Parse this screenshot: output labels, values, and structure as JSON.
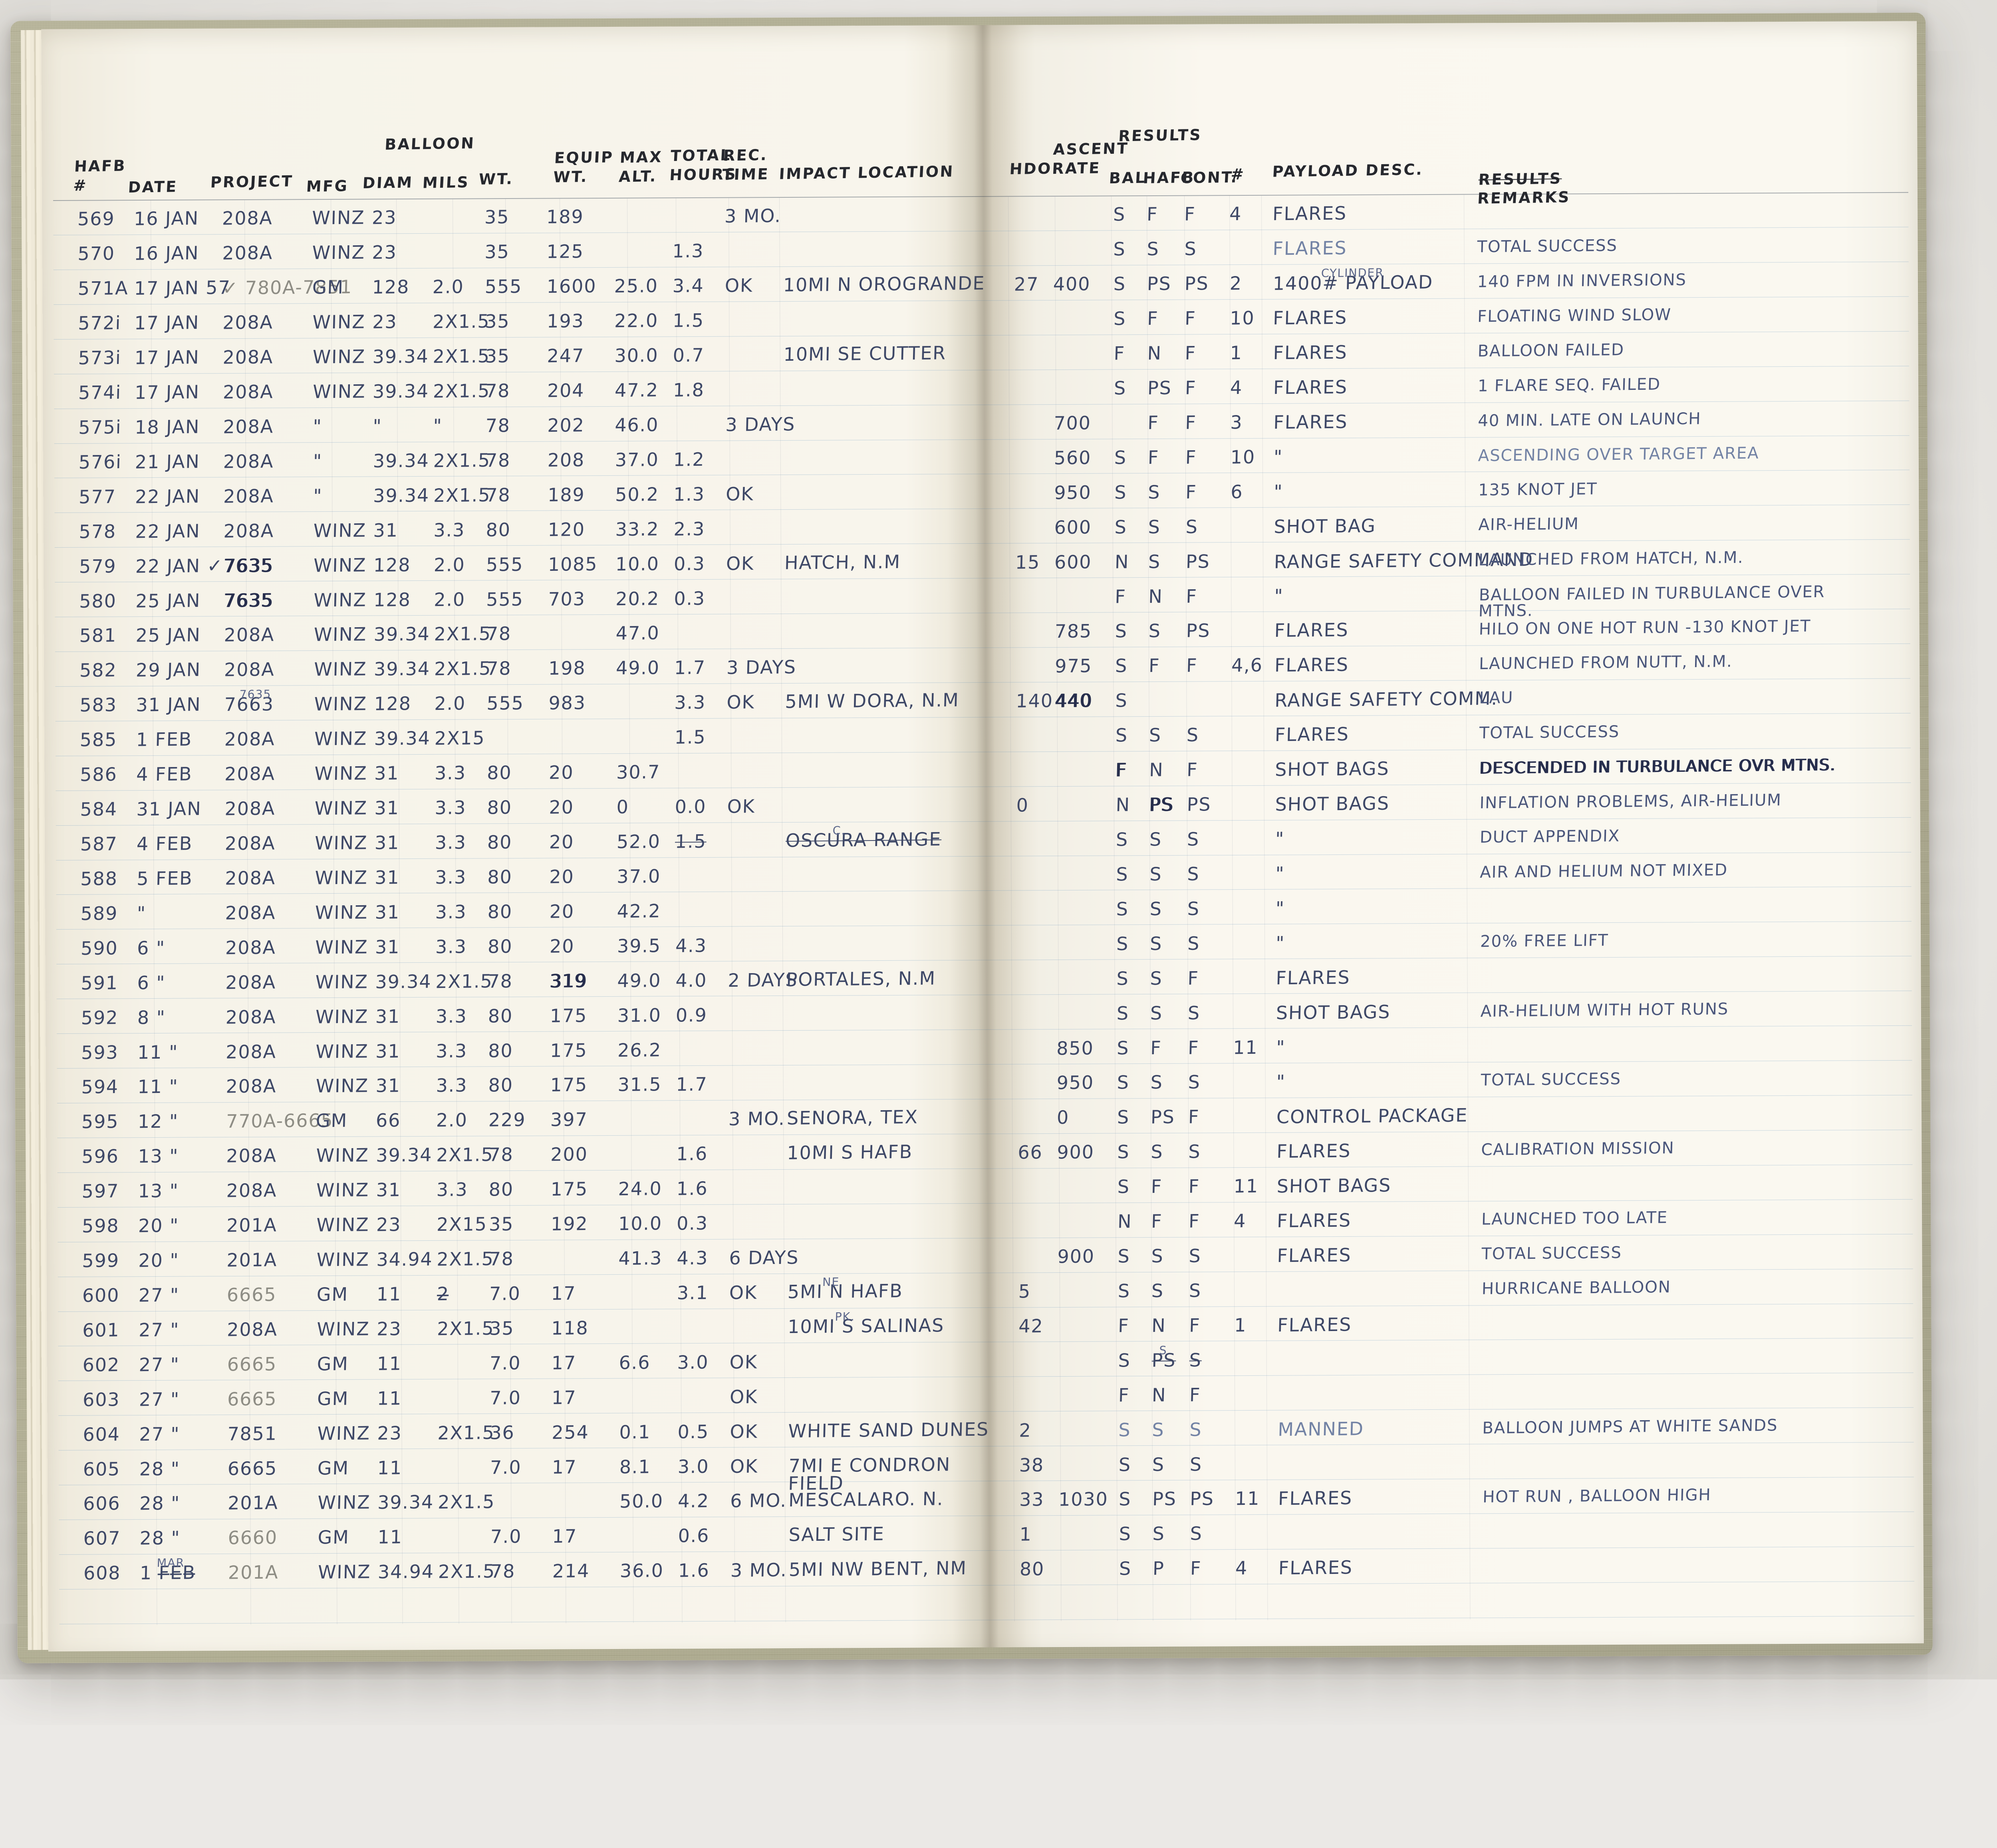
{
  "document": {
    "type": "handwritten balloon launch logbook, two-page spread",
    "palette": {
      "paper": "#f8f5ec",
      "cover_cloth": "#b2af92",
      "rule_blue": "#9db9d0",
      "ink": "#3e4867",
      "ink_dark": "#272e4d",
      "pencil": "#8e8d85",
      "backdrop": "#ebe9e6"
    }
  },
  "headers": {
    "hafb": "HAFB\n#",
    "date": "DATE",
    "project": "PROJECT",
    "balloon_group": "BALLOON",
    "mfg": "MFG",
    "diam": "DIAM",
    "mils": "MILS",
    "wt": "WT.",
    "equip": "EQUIP\nWT.",
    "max_alt": "MAX\nALT.",
    "total_hours": "TOTAL\nHOURS",
    "rec_time": "REC.\nTIME",
    "impact": "IMPACT LOCATION",
    "hdo": "HDO",
    "ascent": "ASCENT\nRATE",
    "results_group": "RESULTS",
    "bal": "BAL",
    "hafb_cont": "HAFB",
    "cont": "CONT.",
    "num": "#",
    "payload": "PAYLOAD DESC.",
    "remarks_struck": "RESULTS",
    "remarks": "REMARKS"
  },
  "rows": [
    {
      "no": "569",
      "date": "16 JAN",
      "proj": "208A",
      "mfg": "WINZ",
      "diam": "23",
      "wt": "35",
      "eq": "189",
      "rec": "3 MO.",
      "bal": "S",
      "hf": "F",
      "ct": "F",
      "n": "4",
      "pay": "FLARES"
    },
    {
      "no": "570",
      "date": "16 JAN",
      "proj": "208A",
      "mfg": "WINZ",
      "diam": "23",
      "wt": "35",
      "eq": "125",
      "hr": "1.3",
      "bal": "S",
      "hf": "S",
      "ct": "S",
      "pay": {
        "t": "FLARES",
        "faint": true
      },
      "rem": "TOTAL SUCCESS"
    },
    {
      "no": "571A",
      "date": "17 JAN 57",
      "proj": {
        "t": "✓ 780A-7851",
        "pencil": true
      },
      "mfg": "GM",
      "diam": "128",
      "mils": "2.0",
      "wt": "555",
      "eq": "1600",
      "alt": "25.0",
      "hr": "3.4",
      "rec": "OK",
      "imp": "10MI N OROGRANDE",
      "hdo": "27",
      "asc": "400",
      "bal": "S",
      "hf": "PS",
      "ct": "PS",
      "n": "2",
      "pay": {
        "t": "1400# PAYLOAD",
        "note": "CYLINDER"
      },
      "rem": "140 FPM IN INVERSIONS"
    },
    {
      "no": "572i",
      "date": "17 JAN",
      "proj": "208A",
      "mfg": "WINZ",
      "diam": "23",
      "mils": "2X1.5",
      "wt": "35",
      "eq": "193",
      "alt": "22.0",
      "hr": "1.5",
      "bal": "S",
      "hf": "F",
      "ct": "F",
      "n": "10",
      "pay": "FLARES",
      "rem": "FLOATING WIND SLOW"
    },
    {
      "no": "573i",
      "date": "17 JAN",
      "proj": "208A",
      "mfg": "WINZ",
      "diam": "39.34",
      "mils": "2X1.5",
      "wt": "35",
      "eq": "247",
      "alt": "30.0",
      "hr": "0.7",
      "imp": "10MI SE CUTTER",
      "bal": "F",
      "hf": "N",
      "ct": "F",
      "n": "1",
      "pay": "FLARES",
      "rem": "BALLOON FAILED"
    },
    {
      "no": "574i",
      "date": "17 JAN",
      "proj": "208A",
      "mfg": "WINZ",
      "diam": "39.34",
      "mils": "2X1.5",
      "wt": "78",
      "eq": "204",
      "alt": "47.2",
      "hr": "1.8",
      "bal": "S",
      "hf": "PS",
      "ct": "F",
      "n": "4",
      "pay": "FLARES",
      "rem": "1 FLARE SEQ. FAILED"
    },
    {
      "no": "575i",
      "date": "18 JAN",
      "proj": "208A",
      "mfg": "\"",
      "diam": "\"",
      "mils": "\"",
      "wt": "78",
      "eq": "202",
      "alt": "46.0",
      "rec": "3 DAYS",
      "asc": "700",
      "hf": "F",
      "ct": "F",
      "n": "3",
      "pay": "FLARES",
      "rem": "40 MIN. LATE ON LAUNCH"
    },
    {
      "no": "576i",
      "date": "21 JAN",
      "proj": "208A",
      "mfg": "\"",
      "diam": "39.34",
      "mils": "2X1.5",
      "wt": "78",
      "eq": "208",
      "alt": "37.0",
      "hr": "1.2",
      "asc": "560",
      "bal": "S",
      "hf": "F",
      "ct": "F",
      "n": "10",
      "pay": "\"",
      "rem": {
        "t": "ASCENDING OVER TARGET AREA",
        "faint": true
      }
    },
    {
      "no": "577",
      "date": "22 JAN",
      "proj": "208A",
      "mfg": "\"",
      "diam": "39.34",
      "mils": "2X1.5",
      "wt": "78",
      "eq": "189",
      "alt": "50.2",
      "hr": "1.3",
      "rec": "OK",
      "asc": "950",
      "bal": "S",
      "hf": "S",
      "ct": "F",
      "n": "6",
      "pay": "\"",
      "rem": "135 KNOT JET"
    },
    {
      "no": "578",
      "date": "22 JAN",
      "proj": "208A",
      "mfg": "WINZ",
      "diam": "31",
      "mils": "3.3",
      "wt": "80",
      "eq": "120",
      "alt": "33.2",
      "hr": "2.3",
      "asc": "600",
      "bal": "S",
      "hf": "S",
      "ct": "S",
      "pay": "SHOT BAG",
      "rem": "AIR-HELIUM"
    },
    {
      "no": "579",
      "date": "22 JAN ✓",
      "proj": {
        "t": "7635",
        "bold": true
      },
      "mfg": "WINZ",
      "diam": "128",
      "mils": "2.0",
      "wt": "555",
      "eq": "1085",
      "alt": "10.0",
      "hr": "0.3",
      "rec": "OK",
      "imp": "HATCH, N.M",
      "hdo": "15",
      "asc": "600",
      "bal": "N",
      "hf": "S",
      "ct": "PS",
      "pay": "RANGE SAFETY COMMAND",
      "rem": "LAUNCHED FROM HATCH, N.M."
    },
    {
      "no": "580",
      "date": "25 JAN",
      "proj": {
        "t": "7635",
        "bold": true
      },
      "mfg": "WINZ",
      "diam": "128",
      "mils": "2.0",
      "wt": "555",
      "eq": "703",
      "alt": "20.2",
      "hr": "0.3",
      "bal": "F",
      "hf": "N",
      "ct": "F",
      "pay": "\"",
      "rem": "BALLOON FAILED IN TURBULANCE OVER MTNS."
    },
    {
      "no": "581",
      "date": "25 JAN",
      "proj": "208A",
      "mfg": "WINZ",
      "diam": "39.34",
      "mils": "2X1.5",
      "wt": "78",
      "alt": "47.0",
      "asc": "785",
      "bal": "S",
      "hf": "S",
      "ct": "PS",
      "pay": "FLARES",
      "rem": "HILO ON ONE HOT RUN -130 KNOT JET"
    },
    {
      "no": "582",
      "date": "29 JAN",
      "proj": "208A",
      "mfg": "WINZ",
      "diam": "39.34",
      "mils": "2X1.5",
      "wt": "78",
      "eq": "198",
      "alt": "49.0",
      "hr": "1.7",
      "rec": "3 DAYS",
      "asc": "975",
      "bal": "S",
      "hf": "F",
      "ct": "F",
      "n": "4,6",
      "pay": "FLARES",
      "rem": "LAUNCHED FROM NUTT, N.M."
    },
    {
      "no": "583",
      "date": "31 JAN",
      "proj": {
        "t": "7663",
        "note": "7635"
      },
      "mfg": "WINZ",
      "diam": "128",
      "mils": "2.0",
      "wt": "555",
      "eq": "983",
      "hr": "3.3",
      "rec": "OK",
      "imp": "5MI W DORA, N.M",
      "hdo": "140",
      "asc": {
        "t": "440",
        "bold": true
      },
      "bal": "S",
      "pay": "RANGE SAFETY COMM.",
      "rem": "LAU"
    },
    {
      "no": "585",
      "date": "1 FEB",
      "proj": "208A",
      "mfg": "WINZ",
      "diam": "39.34",
      "mils": "2X15",
      "hr": "1.5",
      "bal": "S",
      "hf": "S",
      "ct": "S",
      "pay": "FLARES",
      "rem": "TOTAL SUCCESS"
    },
    {
      "no": "586",
      "date": "4 FEB",
      "proj": "208A",
      "mfg": "WINZ",
      "diam": "31",
      "mils": "3.3",
      "wt": "80",
      "eq": "20",
      "alt": "30.7",
      "bal": {
        "t": "F",
        "bold": true
      },
      "hf": "N",
      "ct": "F",
      "pay": "SHOT BAGS",
      "rem": {
        "t": "DESCENDED IN TURBULANCE OVR MTNS.",
        "bold": true
      }
    },
    {
      "no": "584",
      "date": "31 JAN",
      "proj": "208A",
      "mfg": "WINZ",
      "diam": "31",
      "mils": "3.3",
      "wt": "80",
      "eq": "20",
      "alt": "0",
      "hr": "0.0",
      "rec": "OK",
      "hdo": "0",
      "bal": "N",
      "hf": {
        "t": "PS",
        "bold": true
      },
      "ct": "PS",
      "pay": "SHOT BAGS",
      "rem": "INFLATION PROBLEMS, AIR-HELIUM"
    },
    {
      "no": "587",
      "date": "4 FEB",
      "proj": "208A",
      "mfg": "WINZ",
      "diam": "31",
      "mils": "3.3",
      "wt": "80",
      "eq": "20",
      "alt": "52.0",
      "hr": {
        "t": "1.5",
        "strike": true
      },
      "imp": {
        "t": "OSCURA RANGE",
        "strike": true,
        "note": "C."
      },
      "bal": "S",
      "hf": "S",
      "ct": "S",
      "pay": "\"",
      "rem": "DUCT APPENDIX"
    },
    {
      "no": "588",
      "date": "5 FEB",
      "proj": "208A",
      "mfg": "WINZ",
      "diam": "31",
      "mils": "3.3",
      "wt": "80",
      "eq": "20",
      "alt": "37.0",
      "bal": "S",
      "hf": "S",
      "ct": "S",
      "pay": "\"",
      "rem": "AIR AND HELIUM NOT MIXED"
    },
    {
      "no": "589",
      "date": "\"",
      "proj": "208A",
      "mfg": "WINZ",
      "diam": "31",
      "mils": "3.3",
      "wt": "80",
      "eq": "20",
      "alt": "42.2",
      "bal": "S",
      "hf": "S",
      "ct": "S",
      "pay": "\""
    },
    {
      "no": "590",
      "date": "6 \"",
      "proj": "208A",
      "mfg": "WINZ",
      "diam": "31",
      "mils": "3.3",
      "wt": "80",
      "eq": "20",
      "alt": "39.5",
      "hr": "4.3",
      "bal": "S",
      "hf": "S",
      "ct": "S",
      "pay": "\"",
      "rem": "20% FREE LIFT"
    },
    {
      "no": "591",
      "date": "6 \"",
      "proj": "208A",
      "mfg": "WINZ",
      "diam": "39.34",
      "mils": "2X1.5",
      "wt": "78",
      "eq": {
        "t": "319",
        "bold": true
      },
      "alt": "49.0",
      "hr": "4.0",
      "rec": "2 DAYS",
      "imp": "PORTALES, N.M",
      "bal": "S",
      "hf": "S",
      "ct": "F",
      "pay": "FLARES"
    },
    {
      "no": "592",
      "date": "8 \"",
      "proj": "208A",
      "mfg": "WINZ",
      "diam": "31",
      "mils": "3.3",
      "wt": "80",
      "eq": "175",
      "alt": "31.0",
      "hr": "0.9",
      "bal": "S",
      "hf": "S",
      "ct": "S",
      "pay": "SHOT BAGS",
      "rem": "AIR-HELIUM WITH HOT RUNS"
    },
    {
      "no": "593",
      "date": "11 \"",
      "proj": "208A",
      "mfg": "WINZ",
      "diam": "31",
      "mils": "3.3",
      "wt": "80",
      "eq": "175",
      "alt": "26.2",
      "asc": "850",
      "bal": "S",
      "hf": "F",
      "ct": "F",
      "n": "11",
      "pay": "\""
    },
    {
      "no": "594",
      "date": "11 \"",
      "proj": "208A",
      "mfg": "WINZ",
      "diam": "31",
      "mils": "3.3",
      "wt": "80",
      "eq": "175",
      "alt": "31.5",
      "hr": "1.7",
      "asc": "950",
      "bal": "S",
      "hf": "S",
      "ct": "S",
      "pay": "\"",
      "rem": "TOTAL SUCCESS"
    },
    {
      "no": "595",
      "date": "12 \"",
      "proj": {
        "t": "770A-6665",
        "pencil": true
      },
      "mfg": "GM",
      "diam": "66",
      "mils": "2.0",
      "wt": "229",
      "eq": "397",
      "rec": "3 MO.",
      "imp": "SENORA, TEX",
      "asc": "0",
      "bal": "S",
      "hf": "PS",
      "ct": "F",
      "pay": "CONTROL PACKAGE"
    },
    {
      "no": "596",
      "date": "13 \"",
      "proj": "208A",
      "mfg": "WINZ",
      "diam": "39.34",
      "mils": "2X1.5",
      "wt": "78",
      "eq": "200",
      "hr": "1.6",
      "imp": "10MI S HAFB",
      "hdo": "66",
      "asc": "900",
      "bal": "S",
      "hf": "S",
      "ct": "S",
      "pay": "FLARES",
      "rem": "CALIBRATION MISSION"
    },
    {
      "no": "597",
      "date": "13 \"",
      "proj": "208A",
      "mfg": "WINZ",
      "diam": "31",
      "mils": "3.3",
      "wt": "80",
      "eq": "175",
      "alt": "24.0",
      "hr": "1.6",
      "bal": "S",
      "hf": "F",
      "ct": "F",
      "n": "11",
      "pay": "SHOT BAGS"
    },
    {
      "no": "598",
      "date": "20 \"",
      "proj": "201A",
      "mfg": "WINZ",
      "diam": "23",
      "mils": "2X15",
      "wt": "35",
      "eq": "192",
      "alt": "10.0",
      "hr": "0.3",
      "bal": "N",
      "hf": "F",
      "ct": "F",
      "n": "4",
      "pay": "FLARES",
      "rem": "LAUNCHED TOO LATE"
    },
    {
      "no": "599",
      "date": "20 \"",
      "proj": "201A",
      "mfg": "WINZ",
      "diam": "34.94",
      "mils": "2X1.5",
      "wt": "78",
      "alt": "41.3",
      "hr": "4.3",
      "rec": "6 DAYS",
      "asc": "900",
      "bal": "S",
      "hf": "S",
      "ct": "S",
      "pay": "FLARES",
      "rem": "TOTAL SUCCESS"
    },
    {
      "no": "600",
      "date": "27 \"",
      "proj": {
        "t": "6665",
        "pencil": true
      },
      "mfg": "GM",
      "diam": "11",
      "mils": "2̶",
      "wt": "7.0",
      "eq": "17",
      "hr": "3.1",
      "rec": "OK",
      "imp": {
        "t": "5MI N HAFB",
        "note": "NE"
      },
      "hdo": "5",
      "bal": "S",
      "hf": "S",
      "ct": "S",
      "rem": "HURRICANE BALLOON"
    },
    {
      "no": "601",
      "date": "27 \"",
      "proj": "208A",
      "mfg": "WINZ",
      "diam": "23",
      "mils": "2X1.5",
      "wt": "35",
      "eq": "118",
      "imp": {
        "t": "10MI S SALINAS",
        "note": "PK."
      },
      "hdo": "42",
      "bal": "F",
      "hf": "N",
      "ct": "F",
      "n": "1",
      "pay": "FLARES"
    },
    {
      "no": "602",
      "date": "27 \"",
      "proj": {
        "t": "6665",
        "pencil": true
      },
      "mfg": "GM",
      "diam": "11",
      "wt": "7.0",
      "eq": "17",
      "alt": "6.6",
      "hr": "3.0",
      "rec": "OK",
      "bal": "S",
      "hf": {
        "t": "PS",
        "strike": true,
        "note": "S"
      },
      "ct": {
        "t": "S",
        "strike": true
      }
    },
    {
      "no": "603",
      "date": "27 \"",
      "proj": {
        "t": "6665",
        "pencil": true
      },
      "mfg": "GM",
      "diam": "11",
      "wt": "7.0",
      "eq": "17",
      "rec": "OK",
      "bal": "F",
      "hf": "N",
      "ct": "F"
    },
    {
      "no": "604",
      "date": "27 \"",
      "proj": "7851",
      "mfg": "WINZ",
      "diam": "23",
      "mils": "2X1.5",
      "wt": "36",
      "eq": "254",
      "alt": "0.1",
      "hr": "0.5",
      "rec": "OK",
      "imp": "WHITE SAND DUNES",
      "hdo": "2",
      "bal": {
        "t": "S",
        "faint": true
      },
      "hf": {
        "t": "S",
        "faint": true
      },
      "ct": {
        "t": "S",
        "faint": true
      },
      "pay": {
        "t": "MANNED",
        "faint": true
      },
      "rem": "BALLOON JUMPS AT WHITE SANDS"
    },
    {
      "no": "605",
      "date": "28 \"",
      "proj": "6665",
      "mfg": "GM",
      "diam": "11",
      "wt": "7.0",
      "eq": "17",
      "alt": "8.1",
      "hr": "3.0",
      "rec": "OK",
      "imp": "7MI E CONDRON FIELD",
      "hdo": "38",
      "bal": "S",
      "hf": "S",
      "ct": "S"
    },
    {
      "no": "606",
      "date": "28 \"",
      "proj": "201A",
      "mfg": "WINZ",
      "diam": "39.34",
      "mils": "2X1.5",
      "alt": "50.0",
      "hr": "4.2",
      "rec": "6 MO.",
      "imp": "MESCALARO. N.",
      "hdo": "33",
      "asc": "1030",
      "bal": "S",
      "hf": "PS",
      "ct": "PS",
      "n": "11",
      "pay": "FLARES",
      "rem": "HOT RUN , BALLOON HIGH"
    },
    {
      "no": "607",
      "date": "28 \"",
      "proj": {
        "t": "6660",
        "pencil": true
      },
      "mfg": "GM",
      "diam": "11",
      "wt": "7.0",
      "eq": "17",
      "hr": "0.6",
      "imp": "SALT SITE",
      "hdo": "1",
      "bal": "S",
      "hf": "S",
      "ct": "S"
    },
    {
      "no": "608",
      "date": {
        "t": "1 F̶E̶B̶",
        "note": "MAR"
      },
      "proj": {
        "t": "201A",
        "pencil": true
      },
      "mfg": "WINZ",
      "diam": "34.94",
      "mils": "2X1.5",
      "wt": "78",
      "eq": "214",
      "alt": "36.0",
      "hr": "1.6",
      "rec": "3 MO.",
      "imp": "5MI NW BENT, NM",
      "hdo": "80",
      "bal": "S",
      "hf": "P",
      "ct": "F",
      "n": "4",
      "pay": "FLARES"
    }
  ]
}
